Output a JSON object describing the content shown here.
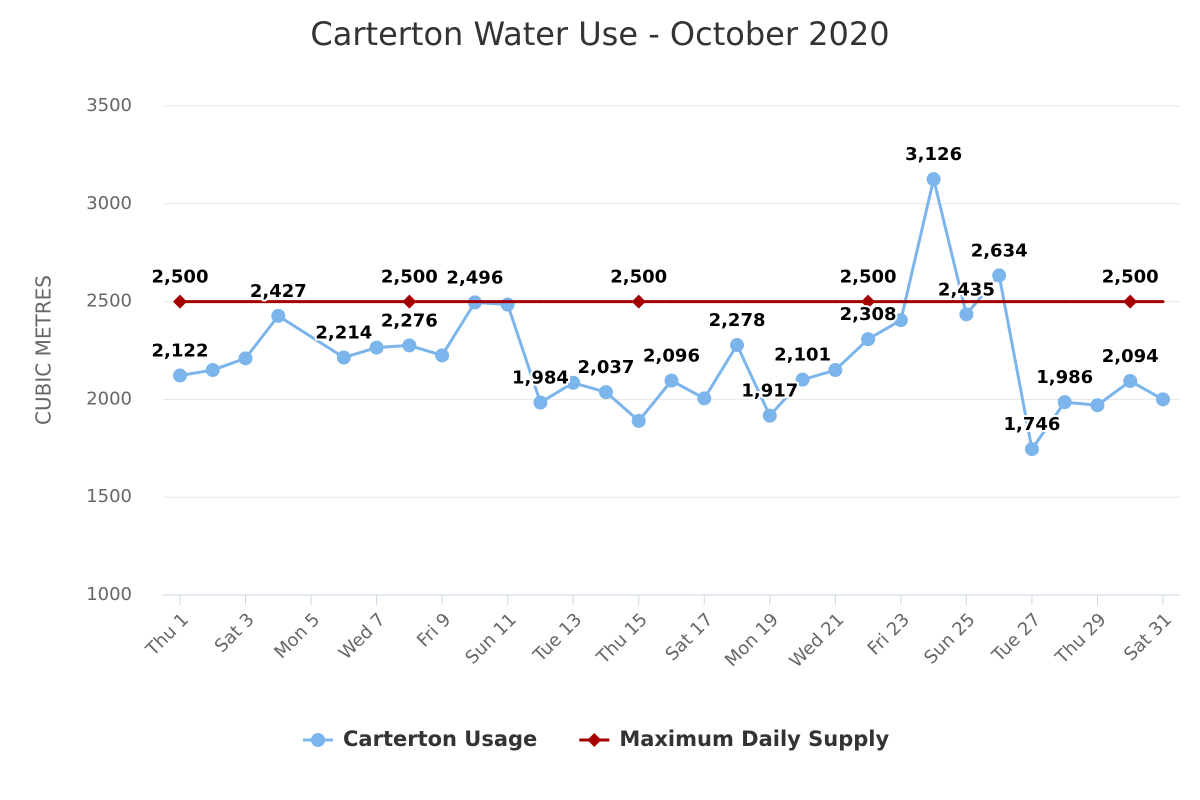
{
  "chart_data": {
    "type": "line",
    "title": "Carterton Water Use - October 2020",
    "y_label": "CUBIC METRES",
    "categories": [
      "Thu 1",
      null,
      "Sat 3",
      null,
      "Mon 5",
      null,
      "Wed 7",
      null,
      "Fri 9",
      null,
      "Sun 11",
      null,
      "Tue 13",
      null,
      "Thu 15",
      null,
      "Sat 17",
      null,
      "Mon 19",
      null,
      "Wed 21",
      null,
      "Fri 23",
      null,
      "Sun 25",
      null,
      "Tue 27",
      null,
      "Thu 29",
      null,
      "Sat 31"
    ],
    "series": [
      {
        "name": "Carterton Usage",
        "color": "#7cb5ec",
        "marker": "circle",
        "values": [
          2122,
          2150,
          2210,
          2427,
          null,
          2214,
          2265,
          2276,
          2225,
          2496,
          2485,
          1984,
          2085,
          2037,
          1890,
          2096,
          2005,
          2278,
          1917,
          2101,
          2150,
          2308,
          2405,
          3126,
          2435,
          2634,
          1746,
          1986,
          1970,
          2094,
          2000
        ],
        "value_labels": [
          "2,122",
          null,
          null,
          "2,427",
          null,
          "2,214",
          null,
          "2,276",
          null,
          "2,496",
          null,
          "1,984",
          null,
          "2,037",
          null,
          "2,096",
          null,
          "2,278",
          "1,917",
          "2,101",
          null,
          "2,308",
          null,
          "3,126",
          "2,435",
          "2,634",
          "1,746",
          "1,986",
          null,
          "2,094",
          null
        ]
      },
      {
        "name": "Maximum Daily Supply",
        "color": "#a50000",
        "marker": "diamond",
        "values": [
          2500,
          2500,
          2500,
          2500,
          2500,
          2500,
          2500,
          2500,
          2500,
          2500,
          2500,
          2500,
          2500,
          2500,
          2500,
          2500,
          2500,
          2500,
          2500,
          2500,
          2500,
          2500,
          2500,
          2500,
          2500,
          2500,
          2500,
          2500,
          2500,
          2500,
          2500
        ],
        "value_labels": [
          "2,500",
          null,
          null,
          null,
          null,
          null,
          null,
          "2,500",
          null,
          null,
          null,
          null,
          null,
          null,
          "2,500",
          null,
          null,
          null,
          null,
          null,
          null,
          "2,500",
          null,
          null,
          null,
          null,
          null,
          null,
          null,
          "2,500",
          null
        ]
      }
    ],
    "ylim": [
      1000,
      3500
    ],
    "yticks": [
      1000,
      1500,
      2000,
      2500,
      3000,
      3500
    ],
    "grid": true,
    "connect_nulls": true,
    "legend": "bottom"
  }
}
